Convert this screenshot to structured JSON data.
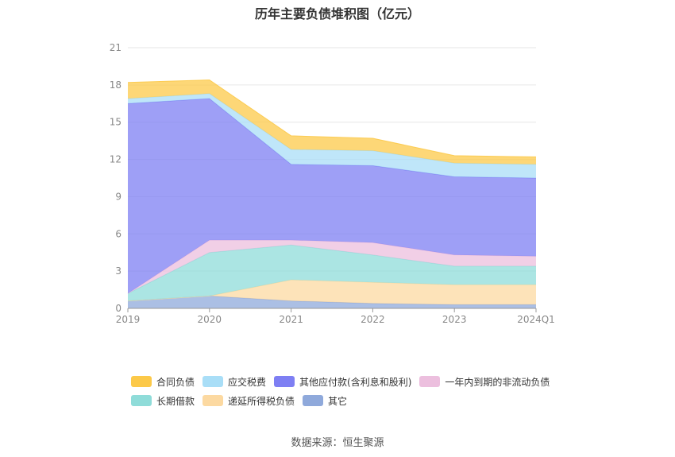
{
  "title": "历年主要负债堆积图（亿元）",
  "source": "数据来源：恒生聚源",
  "chart_data": {
    "type": "area",
    "stacked": true,
    "categories": [
      "2019",
      "2020",
      "2021",
      "2022",
      "2023",
      "2024Q1"
    ],
    "y_ticks": [
      "0",
      "3",
      "6",
      "9",
      "12",
      "15",
      "18",
      "21"
    ],
    "ylim": [
      0,
      21
    ],
    "grid": true,
    "legend_position": "bottom",
    "series": [
      {
        "name": "其它",
        "color": "#8fa9db",
        "values": [
          0.6,
          1.0,
          0.6,
          0.4,
          0.3,
          0.3
        ]
      },
      {
        "name": "递延所得税负债",
        "color": "#fcd9a1",
        "values": [
          0.0,
          0.0,
          1.7,
          1.7,
          1.6,
          1.6
        ]
      },
      {
        "name": "长期借款",
        "color": "#8fdcd9",
        "values": [
          0.6,
          3.5,
          2.8,
          2.2,
          1.5,
          1.5
        ]
      },
      {
        "name": "一年内到期的非流动负债",
        "color": "#ecbfde",
        "values": [
          0.0,
          1.0,
          0.4,
          1.0,
          0.9,
          0.8
        ]
      },
      {
        "name": "其他应付款(含利息和股利)",
        "color": "#7e7ff3",
        "values": [
          15.3,
          11.4,
          6.1,
          6.2,
          6.3,
          6.3
        ]
      },
      {
        "name": "应交税费",
        "color": "#a9def7",
        "values": [
          0.4,
          0.4,
          1.2,
          1.2,
          1.1,
          1.1
        ]
      },
      {
        "name": "合同负债",
        "color": "#fcc949",
        "values": [
          1.3,
          1.1,
          1.1,
          1.0,
          0.6,
          0.6
        ]
      }
    ],
    "legend_order": [
      "合同负债",
      "应交税费",
      "其他应付款(含利息和股利)",
      "一年内到期的非流动负债",
      "长期借款",
      "递延所得税负债",
      "其它"
    ]
  }
}
